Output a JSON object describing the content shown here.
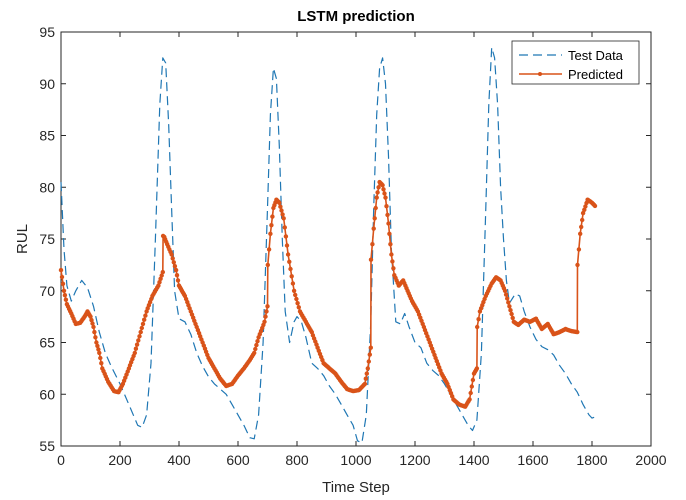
{
  "chart_data": {
    "type": "line",
    "title": "LSTM prediction",
    "xlabel": "Time Step",
    "ylabel": "RUL",
    "xlim": [
      0,
      2000
    ],
    "ylim": [
      55,
      95
    ],
    "xticks": [
      0,
      200,
      400,
      600,
      800,
      1000,
      1200,
      1400,
      1600,
      1800,
      2000
    ],
    "yticks": [
      55,
      60,
      65,
      70,
      75,
      80,
      85,
      90,
      95
    ],
    "grid": false,
    "legend_position": "top-right",
    "series": [
      {
        "name": "Test Data",
        "style": "dashed",
        "color": "#1f77b4",
        "points": [
          [
            0,
            80.5
          ],
          [
            10,
            74
          ],
          [
            20,
            70.5
          ],
          [
            35,
            69
          ],
          [
            50,
            70
          ],
          [
            70,
            71
          ],
          [
            90,
            70.3
          ],
          [
            110,
            68.5
          ],
          [
            130,
            66
          ],
          [
            150,
            64
          ],
          [
            170,
            62.7
          ],
          [
            200,
            61
          ],
          [
            230,
            59
          ],
          [
            260,
            57
          ],
          [
            275,
            56.8
          ],
          [
            290,
            58
          ],
          [
            305,
            63
          ],
          [
            320,
            75
          ],
          [
            335,
            88
          ],
          [
            345,
            92.5
          ],
          [
            355,
            92
          ],
          [
            365,
            86
          ],
          [
            375,
            78
          ],
          [
            385,
            70
          ],
          [
            400,
            67.3
          ],
          [
            420,
            67
          ],
          [
            440,
            65.8
          ],
          [
            460,
            64
          ],
          [
            480,
            62.7
          ],
          [
            500,
            61.7
          ],
          [
            520,
            61
          ],
          [
            540,
            60.5
          ],
          [
            560,
            60
          ],
          [
            580,
            59
          ],
          [
            600,
            58
          ],
          [
            620,
            57
          ],
          [
            640,
            55.8
          ],
          [
            655,
            55.7
          ],
          [
            670,
            58
          ],
          [
            685,
            65
          ],
          [
            700,
            78
          ],
          [
            710,
            87
          ],
          [
            720,
            91.5
          ],
          [
            730,
            90.5
          ],
          [
            740,
            84
          ],
          [
            750,
            75
          ],
          [
            760,
            68
          ],
          [
            775,
            65
          ],
          [
            790,
            67
          ],
          [
            800,
            67.5
          ],
          [
            815,
            67
          ],
          [
            830,
            65.5
          ],
          [
            850,
            63
          ],
          [
            870,
            62.5
          ],
          [
            890,
            61.8
          ],
          [
            910,
            60.8
          ],
          [
            930,
            60
          ],
          [
            950,
            59
          ],
          [
            970,
            58
          ],
          [
            990,
            57
          ],
          [
            1005,
            55.5
          ],
          [
            1020,
            55.3
          ],
          [
            1035,
            58
          ],
          [
            1050,
            67
          ],
          [
            1060,
            78
          ],
          [
            1070,
            87
          ],
          [
            1080,
            91.5
          ],
          [
            1090,
            92.5
          ],
          [
            1100,
            90
          ],
          [
            1110,
            83
          ],
          [
            1120,
            74
          ],
          [
            1135,
            67
          ],
          [
            1150,
            66.8
          ],
          [
            1165,
            67.8
          ],
          [
            1180,
            66.5
          ],
          [
            1200,
            65
          ],
          [
            1220,
            64.5
          ],
          [
            1240,
            63
          ],
          [
            1260,
            62.3
          ],
          [
            1280,
            61.8
          ],
          [
            1300,
            61
          ],
          [
            1320,
            60
          ],
          [
            1340,
            59
          ],
          [
            1360,
            58
          ],
          [
            1380,
            57
          ],
          [
            1395,
            56.5
          ],
          [
            1410,
            57.5
          ],
          [
            1425,
            64
          ],
          [
            1440,
            78
          ],
          [
            1450,
            88
          ],
          [
            1460,
            93.5
          ],
          [
            1470,
            92.5
          ],
          [
            1480,
            88
          ],
          [
            1490,
            80
          ],
          [
            1500,
            75
          ],
          [
            1510,
            71
          ],
          [
            1520,
            68.8
          ],
          [
            1540,
            69.7
          ],
          [
            1555,
            69.5
          ],
          [
            1570,
            68
          ],
          [
            1590,
            66.5
          ],
          [
            1610,
            65.3
          ],
          [
            1630,
            64.6
          ],
          [
            1650,
            64.3
          ],
          [
            1670,
            63.8
          ],
          [
            1690,
            62.8
          ],
          [
            1710,
            62
          ],
          [
            1730,
            61
          ],
          [
            1750,
            60.2
          ],
          [
            1770,
            59
          ],
          [
            1790,
            58
          ],
          [
            1800,
            57.7
          ],
          [
            1810,
            57.8
          ]
        ]
      },
      {
        "name": "Predicted",
        "style": "solid-marker",
        "color": "#d95319",
        "points": [
          [
            0,
            72
          ],
          [
            10,
            70
          ],
          [
            20,
            68.7
          ],
          [
            35,
            67.8
          ],
          [
            50,
            66.8
          ],
          [
            65,
            66.9
          ],
          [
            80,
            67.5
          ],
          [
            90,
            68
          ],
          [
            100,
            67.5
          ],
          [
            110,
            66.5
          ],
          [
            120,
            65
          ],
          [
            130,
            64
          ],
          [
            140,
            62.5
          ],
          [
            160,
            61.2
          ],
          [
            180,
            60.3
          ],
          [
            195,
            60.2
          ],
          [
            210,
            61
          ],
          [
            230,
            62.5
          ],
          [
            250,
            64
          ],
          [
            270,
            66
          ],
          [
            290,
            68
          ],
          [
            310,
            69.5
          ],
          [
            330,
            70.5
          ],
          [
            345,
            71.8
          ],
          [
            346,
            75.3
          ],
          [
            350,
            75.2
          ],
          [
            360,
            74.5
          ],
          [
            375,
            73.5
          ],
          [
            390,
            72
          ],
          [
            400,
            70.5
          ],
          [
            410,
            70
          ],
          [
            420,
            69.5
          ],
          [
            440,
            68
          ],
          [
            460,
            66.5
          ],
          [
            480,
            65
          ],
          [
            500,
            63.5
          ],
          [
            520,
            62.5
          ],
          [
            540,
            61.5
          ],
          [
            560,
            60.8
          ],
          [
            580,
            61
          ],
          [
            600,
            61.8
          ],
          [
            620,
            62.5
          ],
          [
            640,
            63.3
          ],
          [
            655,
            64
          ],
          [
            670,
            65.5
          ],
          [
            690,
            67
          ],
          [
            700,
            68.5
          ],
          [
            701,
            72.5
          ],
          [
            710,
            75.5
          ],
          [
            720,
            78
          ],
          [
            730,
            78.8
          ],
          [
            740,
            78.5
          ],
          [
            755,
            77
          ],
          [
            770,
            73.5
          ],
          [
            790,
            70
          ],
          [
            810,
            68
          ],
          [
            830,
            67
          ],
          [
            850,
            66
          ],
          [
            870,
            64.5
          ],
          [
            890,
            63
          ],
          [
            910,
            62.5
          ],
          [
            930,
            62
          ],
          [
            950,
            61.2
          ],
          [
            970,
            60.5
          ],
          [
            990,
            60.3
          ],
          [
            1010,
            60.4
          ],
          [
            1030,
            61
          ],
          [
            1040,
            62.5
          ],
          [
            1050,
            64.5
          ],
          [
            1051,
            73
          ],
          [
            1060,
            76
          ],
          [
            1070,
            79
          ],
          [
            1080,
            80.5
          ],
          [
            1090,
            80.2
          ],
          [
            1100,
            79
          ],
          [
            1110,
            76.5
          ],
          [
            1120,
            73.5
          ],
          [
            1130,
            71.5
          ],
          [
            1145,
            70.5
          ],
          [
            1160,
            71
          ],
          [
            1175,
            70
          ],
          [
            1190,
            69
          ],
          [
            1210,
            68
          ],
          [
            1230,
            66.5
          ],
          [
            1250,
            65
          ],
          [
            1270,
            63.5
          ],
          [
            1290,
            62
          ],
          [
            1310,
            61
          ],
          [
            1330,
            59.5
          ],
          [
            1350,
            59
          ],
          [
            1370,
            58.8
          ],
          [
            1385,
            59.5
          ],
          [
            1400,
            62
          ],
          [
            1410,
            62.5
          ],
          [
            1411,
            66.5
          ],
          [
            1420,
            68
          ],
          [
            1440,
            69.5
          ],
          [
            1460,
            70.7
          ],
          [
            1475,
            71.3
          ],
          [
            1490,
            71
          ],
          [
            1505,
            70
          ],
          [
            1520,
            68.5
          ],
          [
            1535,
            67
          ],
          [
            1550,
            66.7
          ],
          [
            1570,
            67.2
          ],
          [
            1590,
            67
          ],
          [
            1610,
            67.3
          ],
          [
            1630,
            66.3
          ],
          [
            1650,
            66.8
          ],
          [
            1670,
            65.8
          ],
          [
            1690,
            66
          ],
          [
            1710,
            66.3
          ],
          [
            1730,
            66.1
          ],
          [
            1750,
            66
          ],
          [
            1751,
            72.5
          ],
          [
            1760,
            75.5
          ],
          [
            1770,
            77.5
          ],
          [
            1785,
            78.8
          ],
          [
            1800,
            78.5
          ],
          [
            1810,
            78.2
          ]
        ]
      }
    ]
  }
}
